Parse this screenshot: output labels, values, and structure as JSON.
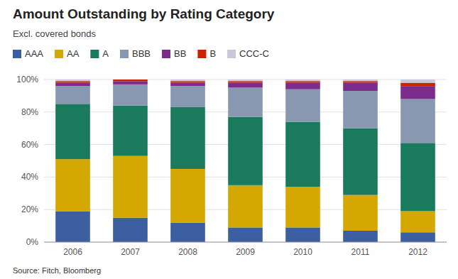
{
  "chart_data": {
    "type": "bar",
    "stacked": true,
    "title": "Amount Outstanding by Rating Category",
    "subtitle": "Excl. covered bonds",
    "source": "Source: Fitch, Bloomberg",
    "categories": [
      "2006",
      "2007",
      "2008",
      "2009",
      "2010",
      "2011",
      "2012"
    ],
    "series": [
      {
        "name": "AAA",
        "color": "#3b5fa0",
        "values": [
          19,
          15,
          12,
          9,
          9,
          7,
          6
        ]
      },
      {
        "name": "AA",
        "color": "#d4a800",
        "values": [
          32,
          38,
          33,
          26,
          25,
          22,
          13
        ]
      },
      {
        "name": "A",
        "color": "#1a7a5e",
        "values": [
          34,
          31,
          38,
          42,
          40,
          41,
          42
        ]
      },
      {
        "name": "BBB",
        "color": "#8898b0",
        "values": [
          11,
          13,
          13,
          18,
          20,
          23,
          27
        ]
      },
      {
        "name": "BB",
        "color": "#7b2d8b",
        "values": [
          2,
          2,
          2,
          3,
          4,
          5,
          8
        ]
      },
      {
        "name": "B",
        "color": "#cc2200",
        "values": [
          1,
          1,
          1,
          1,
          1,
          1,
          2
        ]
      },
      {
        "name": "CCC-C",
        "color": "#c8c8d8",
        "values": [
          1,
          0,
          1,
          1,
          1,
          1,
          2
        ]
      }
    ],
    "ylim": [
      0,
      100
    ],
    "yticks": [
      {
        "value": 0,
        "label": "0%"
      },
      {
        "value": 20,
        "label": "20%"
      },
      {
        "value": 40,
        "label": "40%"
      },
      {
        "value": 60,
        "label": "60%"
      },
      {
        "value": 80,
        "label": "80%"
      },
      {
        "value": 100,
        "label": "100%"
      }
    ],
    "grid": true,
    "legend": "top"
  }
}
